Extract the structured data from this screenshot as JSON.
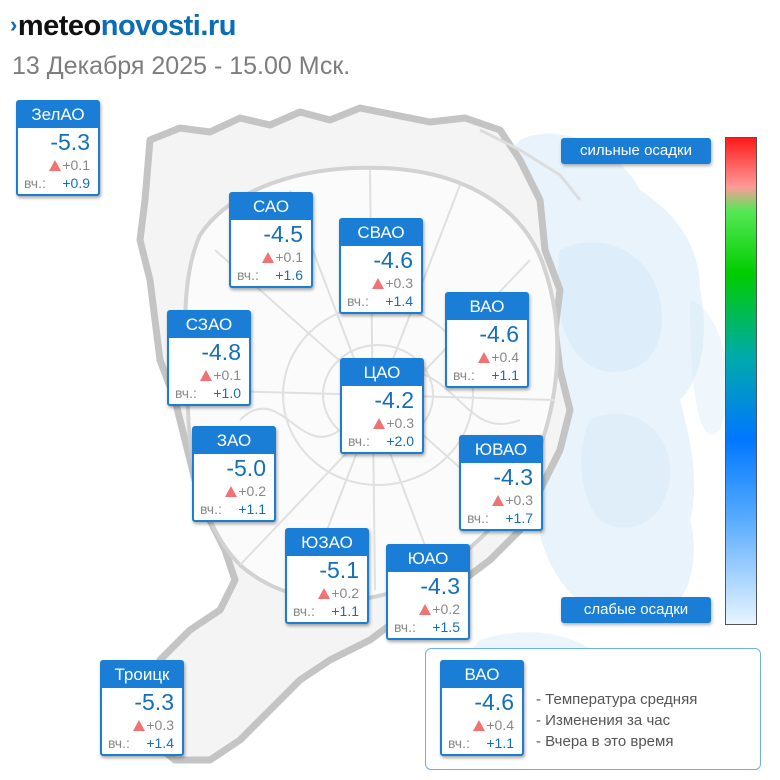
{
  "header": {
    "logo_mark": "›",
    "logo_part1": "meteo",
    "logo_part2": "novosti.ru",
    "datetime": "13 Декабря 2025 - 15.00 Мск."
  },
  "colors": {
    "brand_blue": "#1a7ed6",
    "value_blue": "#1370b8",
    "increase_red": "#f07272",
    "precip_light": "#d6e9f8"
  },
  "icons": {
    "change": "triangle-up-icon"
  },
  "districts": [
    {
      "key": "zelao",
      "name": "ЗелАО",
      "temp": "-5.3",
      "change": "+0.1",
      "yesterday_label": "вч.:",
      "yesterday": "+0.9"
    },
    {
      "key": "sao",
      "name": "САО",
      "temp": "-4.5",
      "change": "+0.1",
      "yesterday_label": "вч.:",
      "yesterday": "+1.6"
    },
    {
      "key": "svao",
      "name": "СВАО",
      "temp": "-4.6",
      "change": "+0.3",
      "yesterday_label": "вч.:",
      "yesterday": "+1.4"
    },
    {
      "key": "vao",
      "name": "ВАО",
      "temp": "-4.6",
      "change": "+0.4",
      "yesterday_label": "вч.:",
      "yesterday": "+1.1"
    },
    {
      "key": "szao",
      "name": "СЗАО",
      "temp": "-4.8",
      "change": "+0.1",
      "yesterday_label": "вч.:",
      "yesterday": "+1.0"
    },
    {
      "key": "cao",
      "name": "ЦАО",
      "temp": "-4.2",
      "change": "+0.3",
      "yesterday_label": "вч.:",
      "yesterday": "+2.0"
    },
    {
      "key": "zao",
      "name": "ЗАО",
      "temp": "-5.0",
      "change": "+0.2",
      "yesterday_label": "вч.:",
      "yesterday": "+1.1"
    },
    {
      "key": "yuvao",
      "name": "ЮВАО",
      "temp": "-4.3",
      "change": "+0.3",
      "yesterday_label": "вч.:",
      "yesterday": "+1.7"
    },
    {
      "key": "yuzao",
      "name": "ЮЗАО",
      "temp": "-5.1",
      "change": "+0.2",
      "yesterday_label": "вч.:",
      "yesterday": "+1.1"
    },
    {
      "key": "yuao",
      "name": "ЮАО",
      "temp": "-4.3",
      "change": "+0.2",
      "yesterday_label": "вч.:",
      "yesterday": "+1.5"
    },
    {
      "key": "troitsk",
      "name": "Троицк",
      "temp": "-5.3",
      "change": "+0.3",
      "yesterday_label": "вч.:",
      "yesterday": "+1.4"
    }
  ],
  "precip_scale": {
    "top_label": "сильные осадки",
    "bottom_label": "слабые осадки"
  },
  "legend": {
    "sample": {
      "name": "ВАО",
      "temp": "-4.6",
      "change": "+0.4",
      "yesterday_label": "вч.:",
      "yesterday": "+1.1"
    },
    "line1": "- Температура средняя",
    "line2": "- Изменения за час",
    "line3": "- Вчера в это время"
  }
}
